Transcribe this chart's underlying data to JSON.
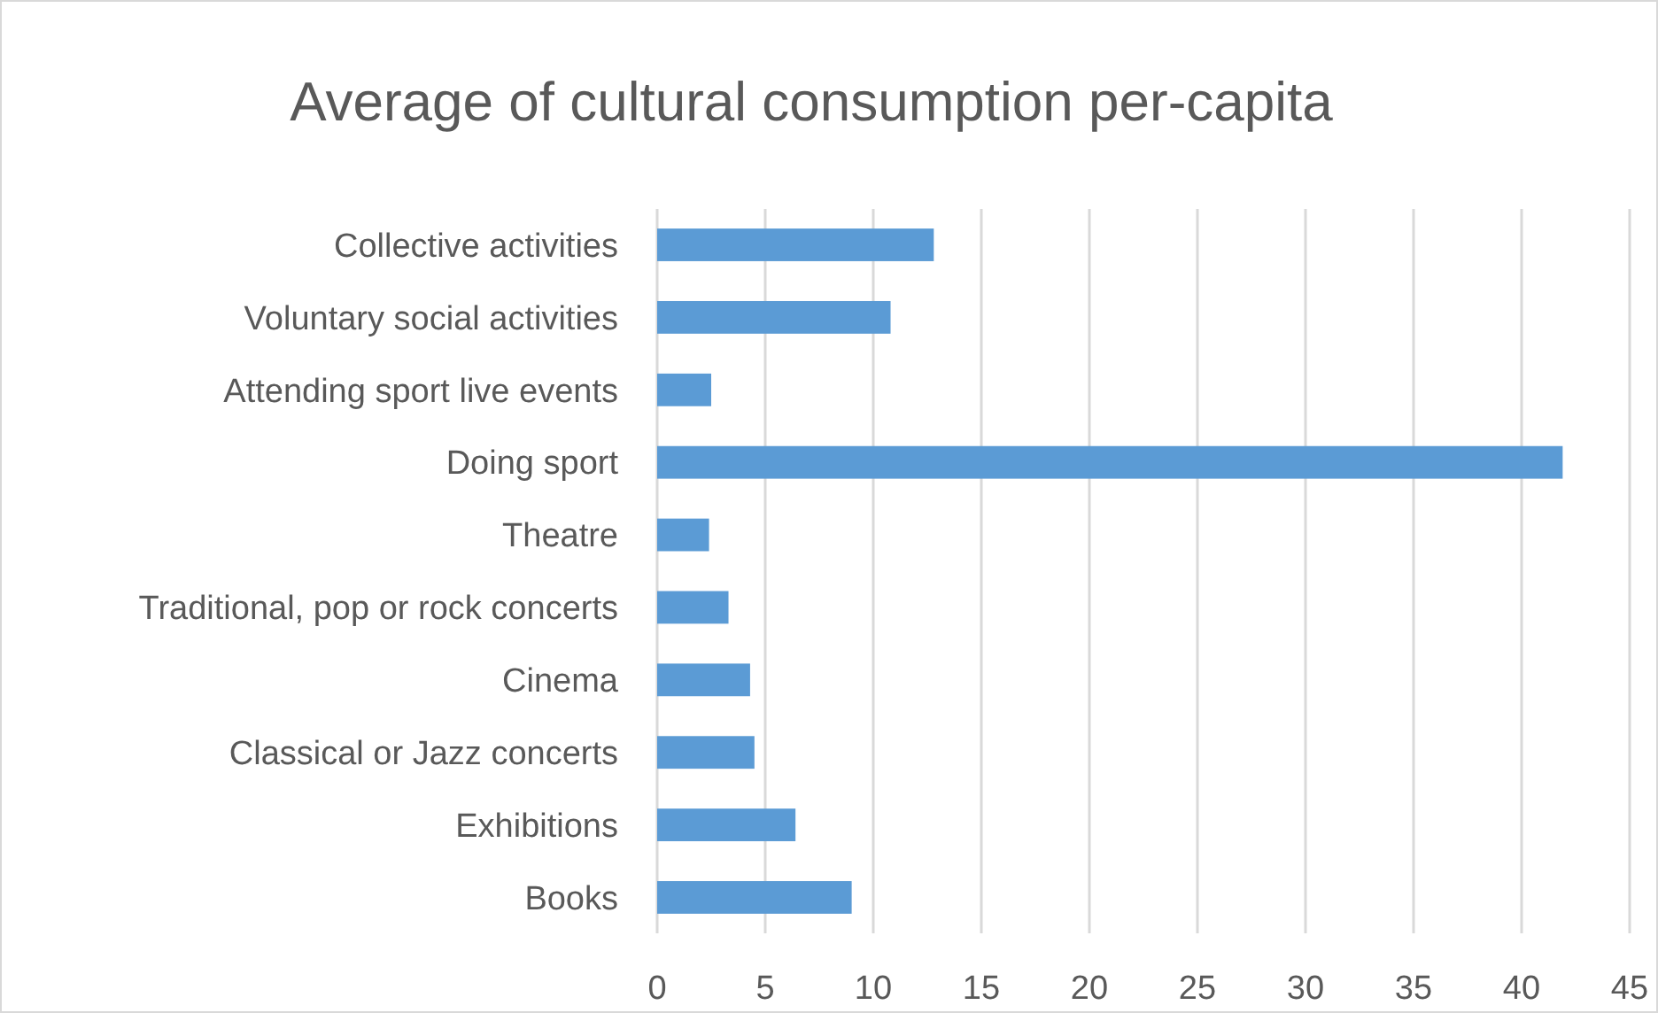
{
  "chart_data": {
    "type": "bar",
    "orientation": "horizontal",
    "title": "Average of cultural consumption per-capita",
    "categories": [
      "Collective activities",
      "Voluntary social activities",
      "Attending sport live events",
      "Doing sport",
      "Theatre",
      "Traditional, pop or rock concerts",
      "Cinema",
      "Classical or Jazz concerts",
      "Exhibitions",
      "Books"
    ],
    "values": [
      12.8,
      10.8,
      2.5,
      41.9,
      2.4,
      3.3,
      4.3,
      4.5,
      6.4,
      9.0
    ],
    "color": "#5b9bd5",
    "xlim": [
      0,
      45
    ],
    "xticks": [
      0,
      5,
      10,
      15,
      20,
      25,
      30,
      35,
      40,
      45
    ],
    "grid": "x"
  }
}
